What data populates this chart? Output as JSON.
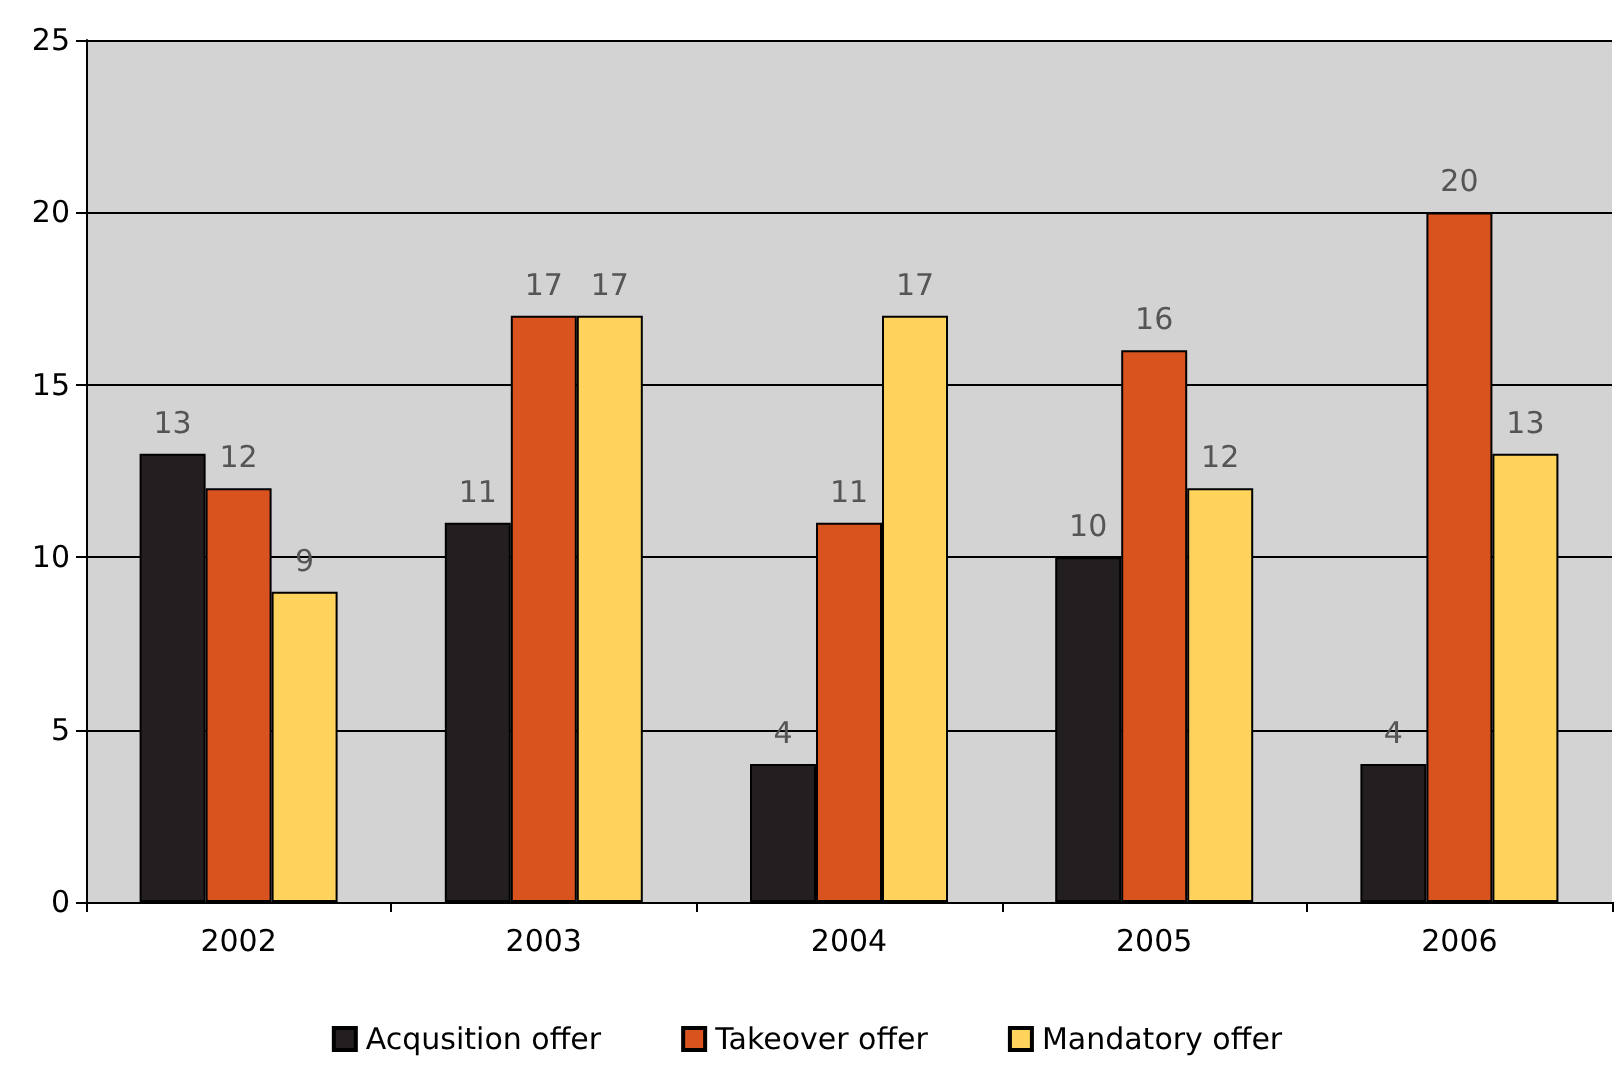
{
  "chart_data": {
    "type": "bar",
    "categories": [
      "2002",
      "2003",
      "2004",
      "2005",
      "2006"
    ],
    "series": [
      {
        "name": "Acqusition offer",
        "color": "#231f20",
        "values": [
          13,
          11,
          4,
          10,
          4
        ]
      },
      {
        "name": "Takeover offer",
        "color": "#d9531e",
        "values": [
          12,
          17,
          11,
          16,
          20
        ]
      },
      {
        "name": "Mandatory offer",
        "color": "#ffd35c",
        "values": [
          9,
          17,
          17,
          12,
          13
        ]
      }
    ],
    "ylim": [
      0,
      25
    ],
    "yticks": [
      0,
      5,
      10,
      15,
      20,
      25
    ],
    "grid": "y",
    "legend": "bottom",
    "data_labels": true
  }
}
